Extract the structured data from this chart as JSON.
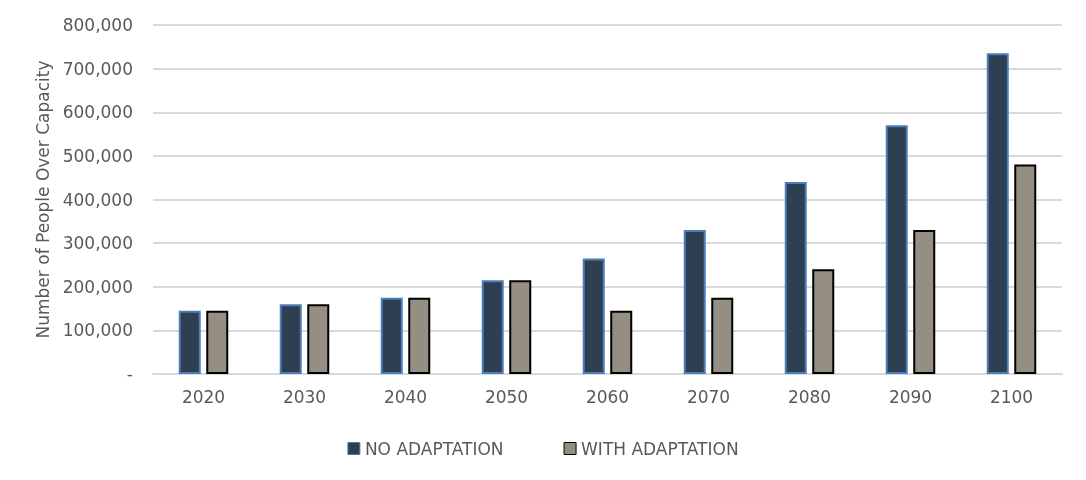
{
  "chart_data": {
    "type": "bar",
    "ylabel": "Number of People Over Capacity",
    "categories": [
      "2020",
      "2030",
      "2040",
      "2050",
      "2060",
      "2070",
      "2080",
      "2090",
      "2100"
    ],
    "series": [
      {
        "name": "NO ADAPTATION",
        "color": "#2f3f52",
        "values": [
          145000,
          160000,
          175000,
          215000,
          265000,
          330000,
          440000,
          570000,
          735000
        ]
      },
      {
        "name": "WITH ADAPTATION",
        "color": "#948f82",
        "values": [
          145000,
          160000,
          175000,
          215000,
          145000,
          175000,
          240000,
          330000,
          480000
        ]
      }
    ],
    "ylim": [
      0,
      800000
    ],
    "yticks": [
      {
        "value": 0,
        "label": "-"
      },
      {
        "value": 100000,
        "label": "100,000"
      },
      {
        "value": 200000,
        "label": "200,000"
      },
      {
        "value": 300000,
        "label": "300,000"
      },
      {
        "value": 400000,
        "label": "400,000"
      },
      {
        "value": 500000,
        "label": "500,000"
      },
      {
        "value": 600000,
        "label": "600,000"
      },
      {
        "value": 700000,
        "label": "700,000"
      },
      {
        "value": 800000,
        "label": "800,000"
      }
    ],
    "grid": "y",
    "legend": "bottom"
  }
}
